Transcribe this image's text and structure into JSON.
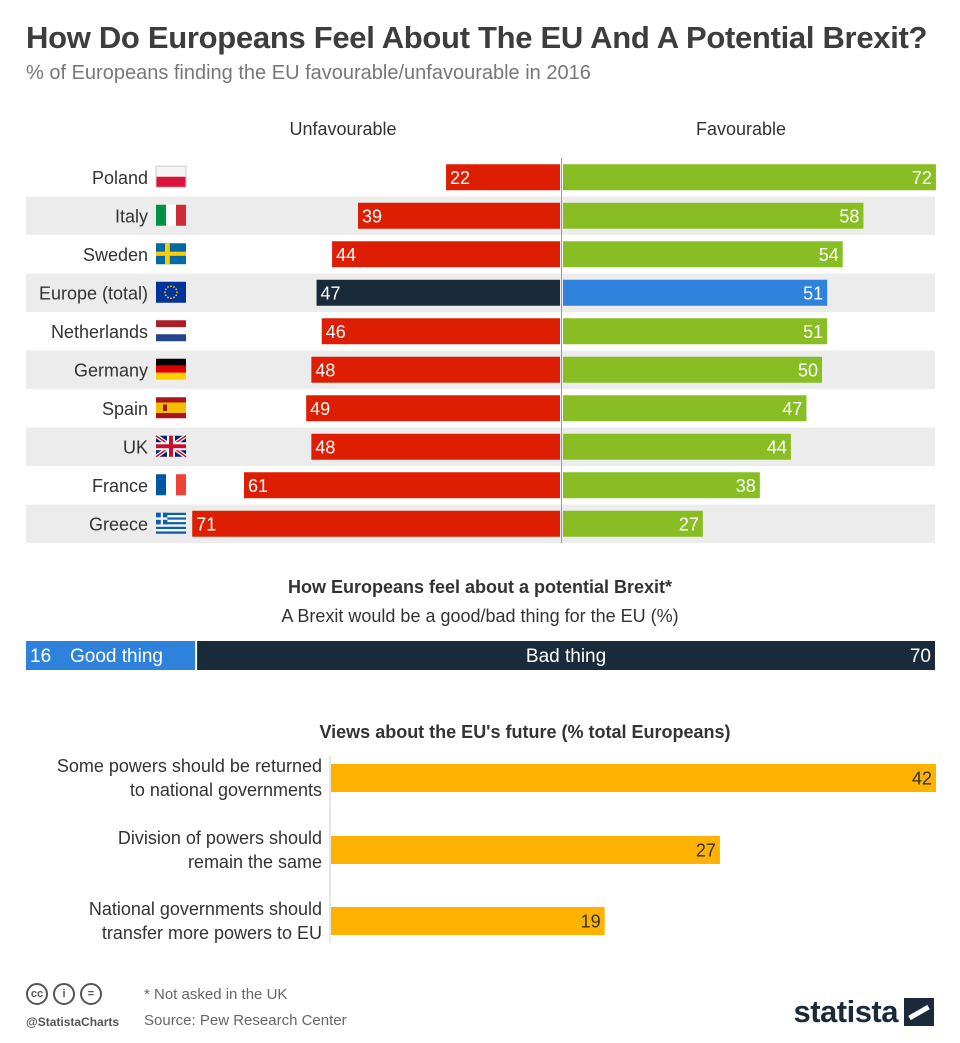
{
  "title": "How Do Europeans Feel About The EU And A Potential Brexit?",
  "subtitle": "% of Europeans finding the EU favourable/unfavourable in 2016",
  "colors": {
    "unfavourable": "#dd1e02",
    "favourable": "#88be24",
    "europe_unfavourable": "#1b2a3a",
    "europe_favourable": "#2f82dc",
    "good_thing": "#2f82dc",
    "bad_thing": "#1b2a3a",
    "future": "#ffb300",
    "row_shade": "#ececec"
  },
  "chart_data": [
    {
      "type": "bar",
      "orientation": "diverging-horizontal",
      "series_labels": {
        "left": "Unfavourable",
        "right": "Favourable"
      },
      "categories": [
        "Poland",
        "Italy",
        "Sweden",
        "Europe (total)",
        "Netherlands",
        "Germany",
        "Spain",
        "UK",
        "France",
        "Greece"
      ],
      "flags": [
        "poland-flag",
        "italy-flag",
        "sweden-flag",
        "eu-flag",
        "netherlands-flag",
        "germany-flag",
        "spain-flag",
        "uk-flag",
        "france-flag",
        "greece-flag"
      ],
      "series": [
        {
          "name": "Unfavourable",
          "values": [
            22,
            39,
            44,
            47,
            46,
            48,
            49,
            48,
            61,
            71
          ]
        },
        {
          "name": "Favourable",
          "values": [
            72,
            58,
            54,
            51,
            51,
            50,
            47,
            44,
            38,
            27
          ]
        }
      ],
      "highlight_category": "Europe (total)"
    },
    {
      "type": "bar",
      "orientation": "stacked-horizontal",
      "title": "How Europeans feel about a potential Brexit*",
      "subtitle": "A Brexit would be a good/bad thing for the EU (%)",
      "segments": [
        {
          "name": "Good thing",
          "value": 16
        },
        {
          "name": "Bad thing",
          "value": 70
        }
      ]
    },
    {
      "type": "bar",
      "orientation": "horizontal",
      "title": "Views about the EU's future (% total Europeans)",
      "categories": [
        [
          "Some powers should be returned",
          "to national governments"
        ],
        [
          "Division of powers should",
          "remain the same"
        ],
        [
          "National governments should",
          "transfer more powers to EU"
        ]
      ],
      "values": [
        42,
        27,
        19
      ]
    }
  ],
  "footer": {
    "handle": "@StatistaCharts",
    "note": "* Not asked in the UK",
    "source": "Source: Pew Research Center",
    "brand": "statista",
    "license_icons": [
      "cc-icon",
      "by-icon",
      "nd-icon"
    ],
    "license_glyphs": [
      "cc",
      "i",
      "="
    ]
  }
}
